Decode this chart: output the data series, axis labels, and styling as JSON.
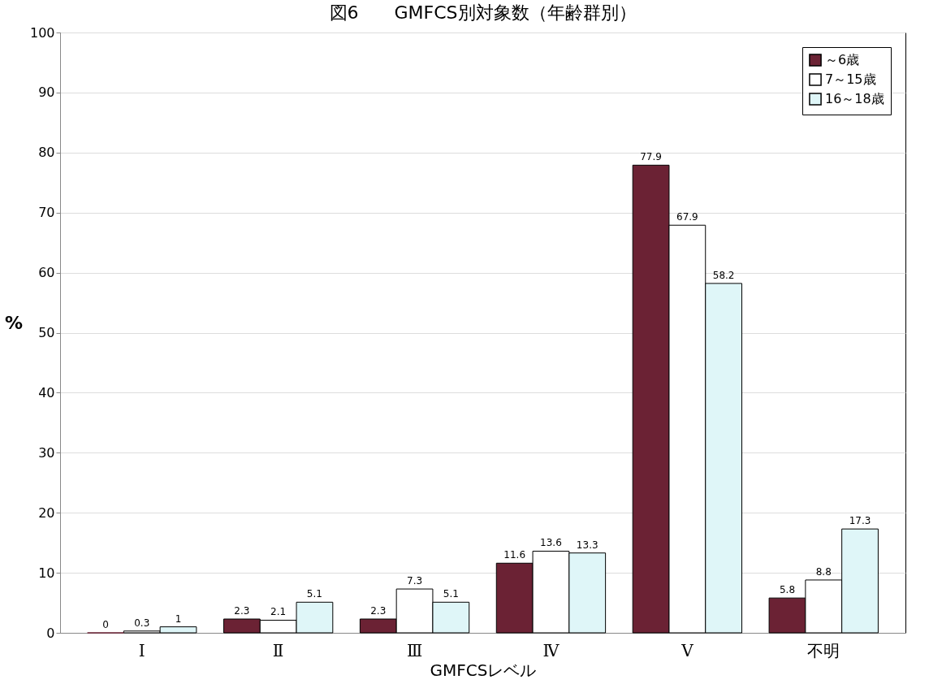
{
  "chart_data": {
    "type": "bar",
    "title": "図6　　GMFCS別対象数（年齢群別）",
    "xlabel": "GMFCSレベル",
    "ylabel": "%",
    "categories": [
      "Ⅰ",
      "Ⅱ",
      "Ⅲ",
      "Ⅳ",
      "Ⅴ",
      "不明"
    ],
    "series": [
      {
        "name": "～6歳",
        "color": "#6b2234",
        "values": [
          0,
          2.3,
          2.3,
          11.6,
          77.9,
          5.8
        ]
      },
      {
        "name": "7～15歳",
        "color": "#ffffff",
        "values": [
          0.3,
          2.1,
          7.3,
          13.6,
          67.9,
          8.8
        ]
      },
      {
        "name": "16～18歳",
        "color": "#dff6f8",
        "values": [
          1,
          5.1,
          5.1,
          13.3,
          58.2,
          17.3
        ]
      }
    ],
    "ylim": [
      0,
      100
    ],
    "yticks": [
      0,
      10,
      20,
      30,
      40,
      50,
      60,
      70,
      80,
      90,
      100
    ],
    "grid": "y",
    "legend": "top right",
    "data_labels": true
  }
}
